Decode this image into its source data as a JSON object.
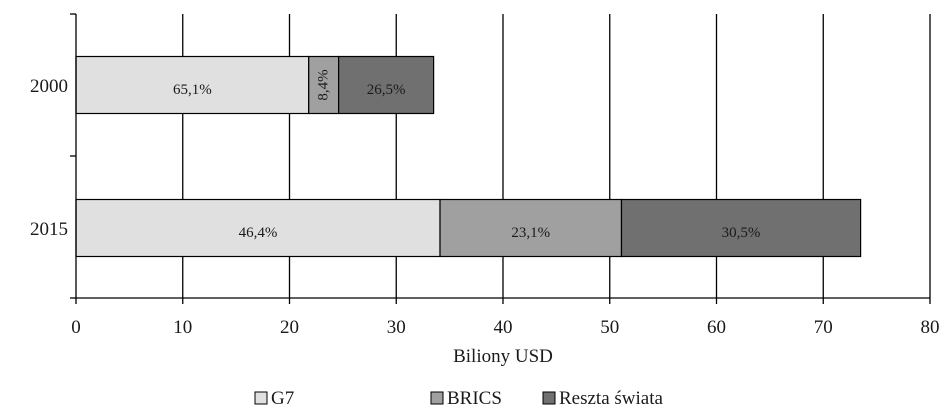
{
  "chart_data": {
    "type": "bar",
    "orientation": "horizontal",
    "stacked": true,
    "title": "",
    "xlabel": "Biliony USD",
    "ylabel": "",
    "xlim": [
      0,
      80
    ],
    "x_ticks": [
      "0",
      "10",
      "20",
      "30",
      "40",
      "50",
      "60",
      "70",
      "80"
    ],
    "categories": [
      "2000",
      "2015"
    ],
    "grid": "vertical",
    "legend_position": "bottom",
    "series": [
      {
        "name": "G7",
        "color": "#e0e0e0",
        "values": [
          21.8,
          34.1
        ],
        "labels": [
          "65,1%",
          "46,4%"
        ]
      },
      {
        "name": "BRICS",
        "color": "#a0a0a0",
        "values": [
          2.8,
          17.0
        ],
        "labels": [
          "8,4%",
          "23,1%"
        ]
      },
      {
        "name": "Reszta świata",
        "color": "#707070",
        "values": [
          8.9,
          22.4
        ],
        "labels": [
          "26,5%",
          "30,5%"
        ]
      }
    ]
  }
}
